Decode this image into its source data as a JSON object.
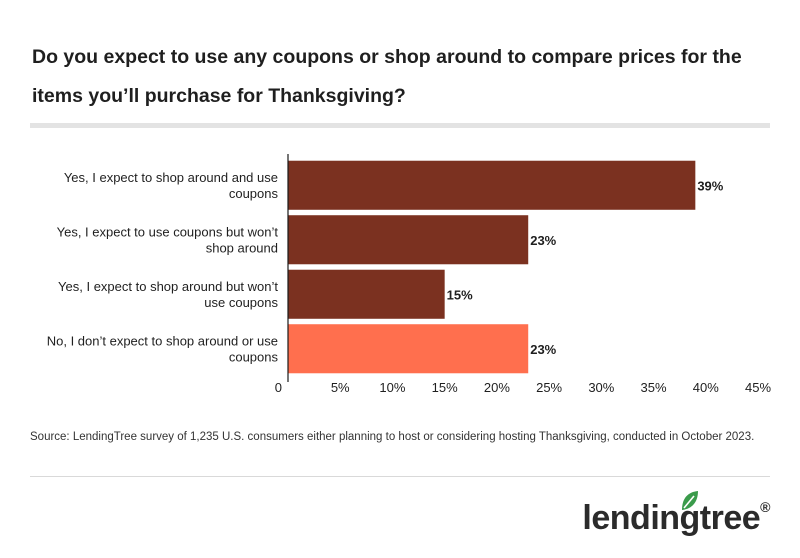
{
  "title": "Do you expect to use any coupons or shop around to compare prices for the items you’ll purchase for Thanksgiving?",
  "source": "Source: LendingTree survey of 1,235 U.S. consumers either planning to host or considering hosting Thanksgiving, conducted in October 2023.",
  "logo": {
    "text": "lendingtree",
    "mark": "®",
    "leaf_color": "#3a9b4b"
  },
  "colors": {
    "primary_bar": "#7b3120",
    "highlight_bar": "#ff6f4e"
  },
  "chart_data": {
    "type": "bar",
    "orientation": "horizontal",
    "title": "",
    "xlabel": "",
    "ylabel": "",
    "xlim": [
      0,
      45
    ],
    "grid": false,
    "categories": [
      {
        "label": [
          "Yes, I expect to shop around and use",
          "coupons"
        ],
        "value": 39,
        "value_label": "39%",
        "highlight": false
      },
      {
        "label": [
          "Yes, I expect to use coupons but won’t",
          "shop around"
        ],
        "value": 23,
        "value_label": "23%",
        "highlight": false
      },
      {
        "label": [
          "Yes, I expect to shop around but won’t",
          "use coupons"
        ],
        "value": 15,
        "value_label": "15%",
        "highlight": false
      },
      {
        "label": [
          "No, I don’t expect to shop around or use",
          "coupons"
        ],
        "value": 23,
        "value_label": "23%",
        "highlight": true
      }
    ],
    "ticks": [
      {
        "value": 0,
        "label": "0"
      },
      {
        "value": 5,
        "label": "5%"
      },
      {
        "value": 10,
        "label": "10%"
      },
      {
        "value": 15,
        "label": "15%"
      },
      {
        "value": 20,
        "label": "20%"
      },
      {
        "value": 25,
        "label": "25%"
      },
      {
        "value": 30,
        "label": "30%"
      },
      {
        "value": 35,
        "label": "35%"
      },
      {
        "value": 40,
        "label": "40%"
      },
      {
        "value": 45,
        "label": "45%"
      }
    ]
  }
}
